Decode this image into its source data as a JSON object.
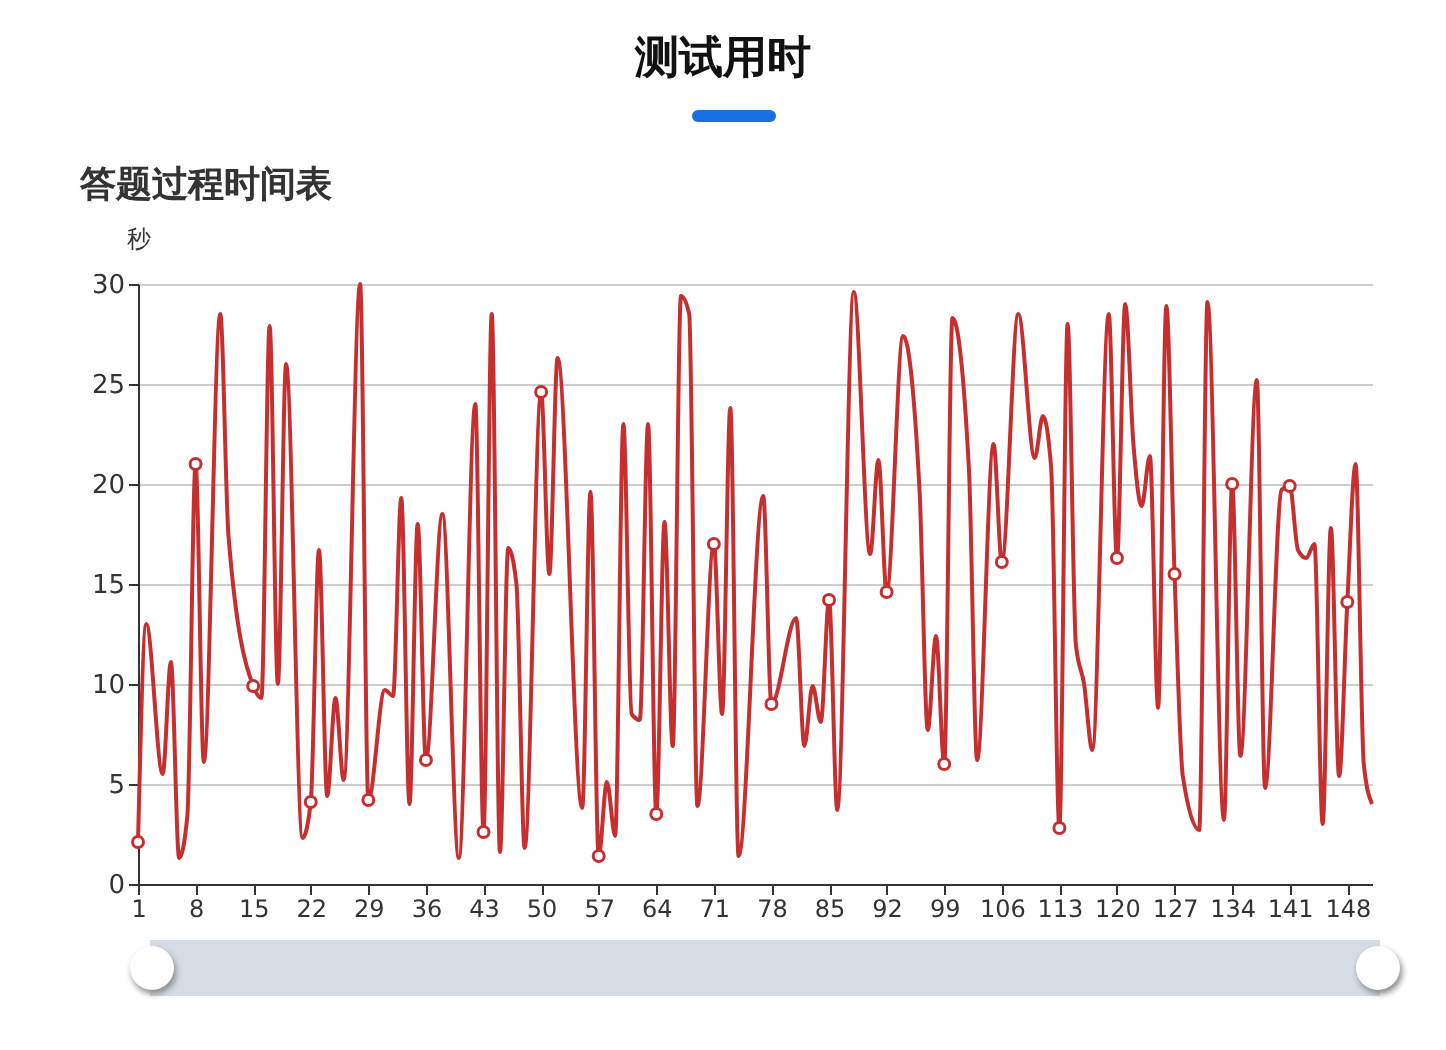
{
  "chart_data": {
    "type": "line",
    "title": "测试用时",
    "subtitle": "答题过程时间表",
    "ylabel": "秒",
    "xlim": [
      1,
      151
    ],
    "xticks": [
      1,
      8,
      15,
      22,
      29,
      36,
      43,
      50,
      57,
      64,
      71,
      78,
      85,
      92,
      99,
      106,
      113,
      120,
      127,
      134,
      141,
      148
    ],
    "ylim": [
      0,
      30
    ],
    "yticks": [
      0,
      5,
      10,
      15,
      20,
      25,
      30
    ],
    "grid": "y",
    "line_style": "solid",
    "series": [
      {
        "color": "#c62f2f",
        "x": [
          1,
          2,
          4,
          5,
          6,
          7,
          8,
          9,
          11,
          12,
          15,
          16,
          17,
          18,
          19,
          21,
          22,
          23,
          24,
          25,
          26,
          28,
          29,
          31,
          32,
          33,
          34,
          35,
          36,
          38,
          40,
          42,
          43,
          44,
          45,
          46,
          47,
          48,
          50,
          51,
          52,
          55,
          56,
          57,
          58,
          59,
          60,
          61,
          62,
          63,
          64,
          65,
          66,
          67,
          68,
          69,
          71,
          72,
          73,
          74,
          77,
          78,
          81,
          82,
          83,
          84,
          85,
          86,
          88,
          90,
          91,
          92,
          94,
          96,
          97,
          98,
          99,
          100,
          102,
          103,
          105,
          106,
          108,
          110,
          111,
          112,
          113,
          114,
          115,
          116,
          117,
          119,
          120,
          121,
          122,
          123,
          124,
          125,
          126,
          127,
          128,
          130,
          131,
          133,
          134,
          135,
          137,
          138,
          140,
          141,
          142,
          143,
          144,
          145,
          146,
          147,
          148,
          149,
          150,
          151
        ],
        "values": [
          2.1,
          13.0,
          5.5,
          11.1,
          1.3,
          3.4,
          21.0,
          6.1,
          28.5,
          17.4,
          9.9,
          9.3,
          27.9,
          10.0,
          26.0,
          2.3,
          4.1,
          16.7,
          4.4,
          9.3,
          5.2,
          30.0,
          4.2,
          9.7,
          9.4,
          19.3,
          4.0,
          18.0,
          6.2,
          18.5,
          1.3,
          24.0,
          2.6,
          28.5,
          1.6,
          16.8,
          15.0,
          1.8,
          24.6,
          15.5,
          26.3,
          3.8,
          19.6,
          1.4,
          5.1,
          2.4,
          23.0,
          8.5,
          8.2,
          23.0,
          3.5,
          18.1,
          6.9,
          29.4,
          28.5,
          3.9,
          17.0,
          8.5,
          23.8,
          1.4,
          19.4,
          9.0,
          13.3,
          6.9,
          9.9,
          8.1,
          14.2,
          3.7,
          29.6,
          16.5,
          21.2,
          14.6,
          27.4,
          19.7,
          7.7,
          12.4,
          6.0,
          28.3,
          20.8,
          6.2,
          22.0,
          16.1,
          28.5,
          21.3,
          23.4,
          20.8,
          2.8,
          28.0,
          12.0,
          10.0,
          6.7,
          28.5,
          16.3,
          29.0,
          22.0,
          18.9,
          21.4,
          8.8,
          28.9,
          15.5,
          5.4,
          2.7,
          29.1,
          3.2,
          20.0,
          6.4,
          25.2,
          4.8,
          19.7,
          19.9,
          16.7,
          16.3,
          17.0,
          3.0,
          17.8,
          5.4,
          14.1,
          21.0,
          6.0,
          4.0
        ]
      },
      {
        "type": "scatter",
        "color": "#c62f2f",
        "marker": "circle",
        "x": [
          1,
          8,
          15,
          22,
          29,
          36,
          43,
          50,
          57,
          64,
          71,
          78,
          85,
          92,
          99,
          106,
          113,
          120,
          127,
          134,
          141,
          148
        ],
        "values": [
          2.1,
          21.0,
          9.9,
          4.1,
          4.2,
          6.2,
          2.6,
          24.6,
          1.4,
          3.5,
          17.0,
          9.0,
          14.2,
          14.6,
          6.0,
          16.1,
          2.8,
          16.3,
          15.5,
          20.0,
          19.9,
          14.1
        ]
      }
    ]
  }
}
